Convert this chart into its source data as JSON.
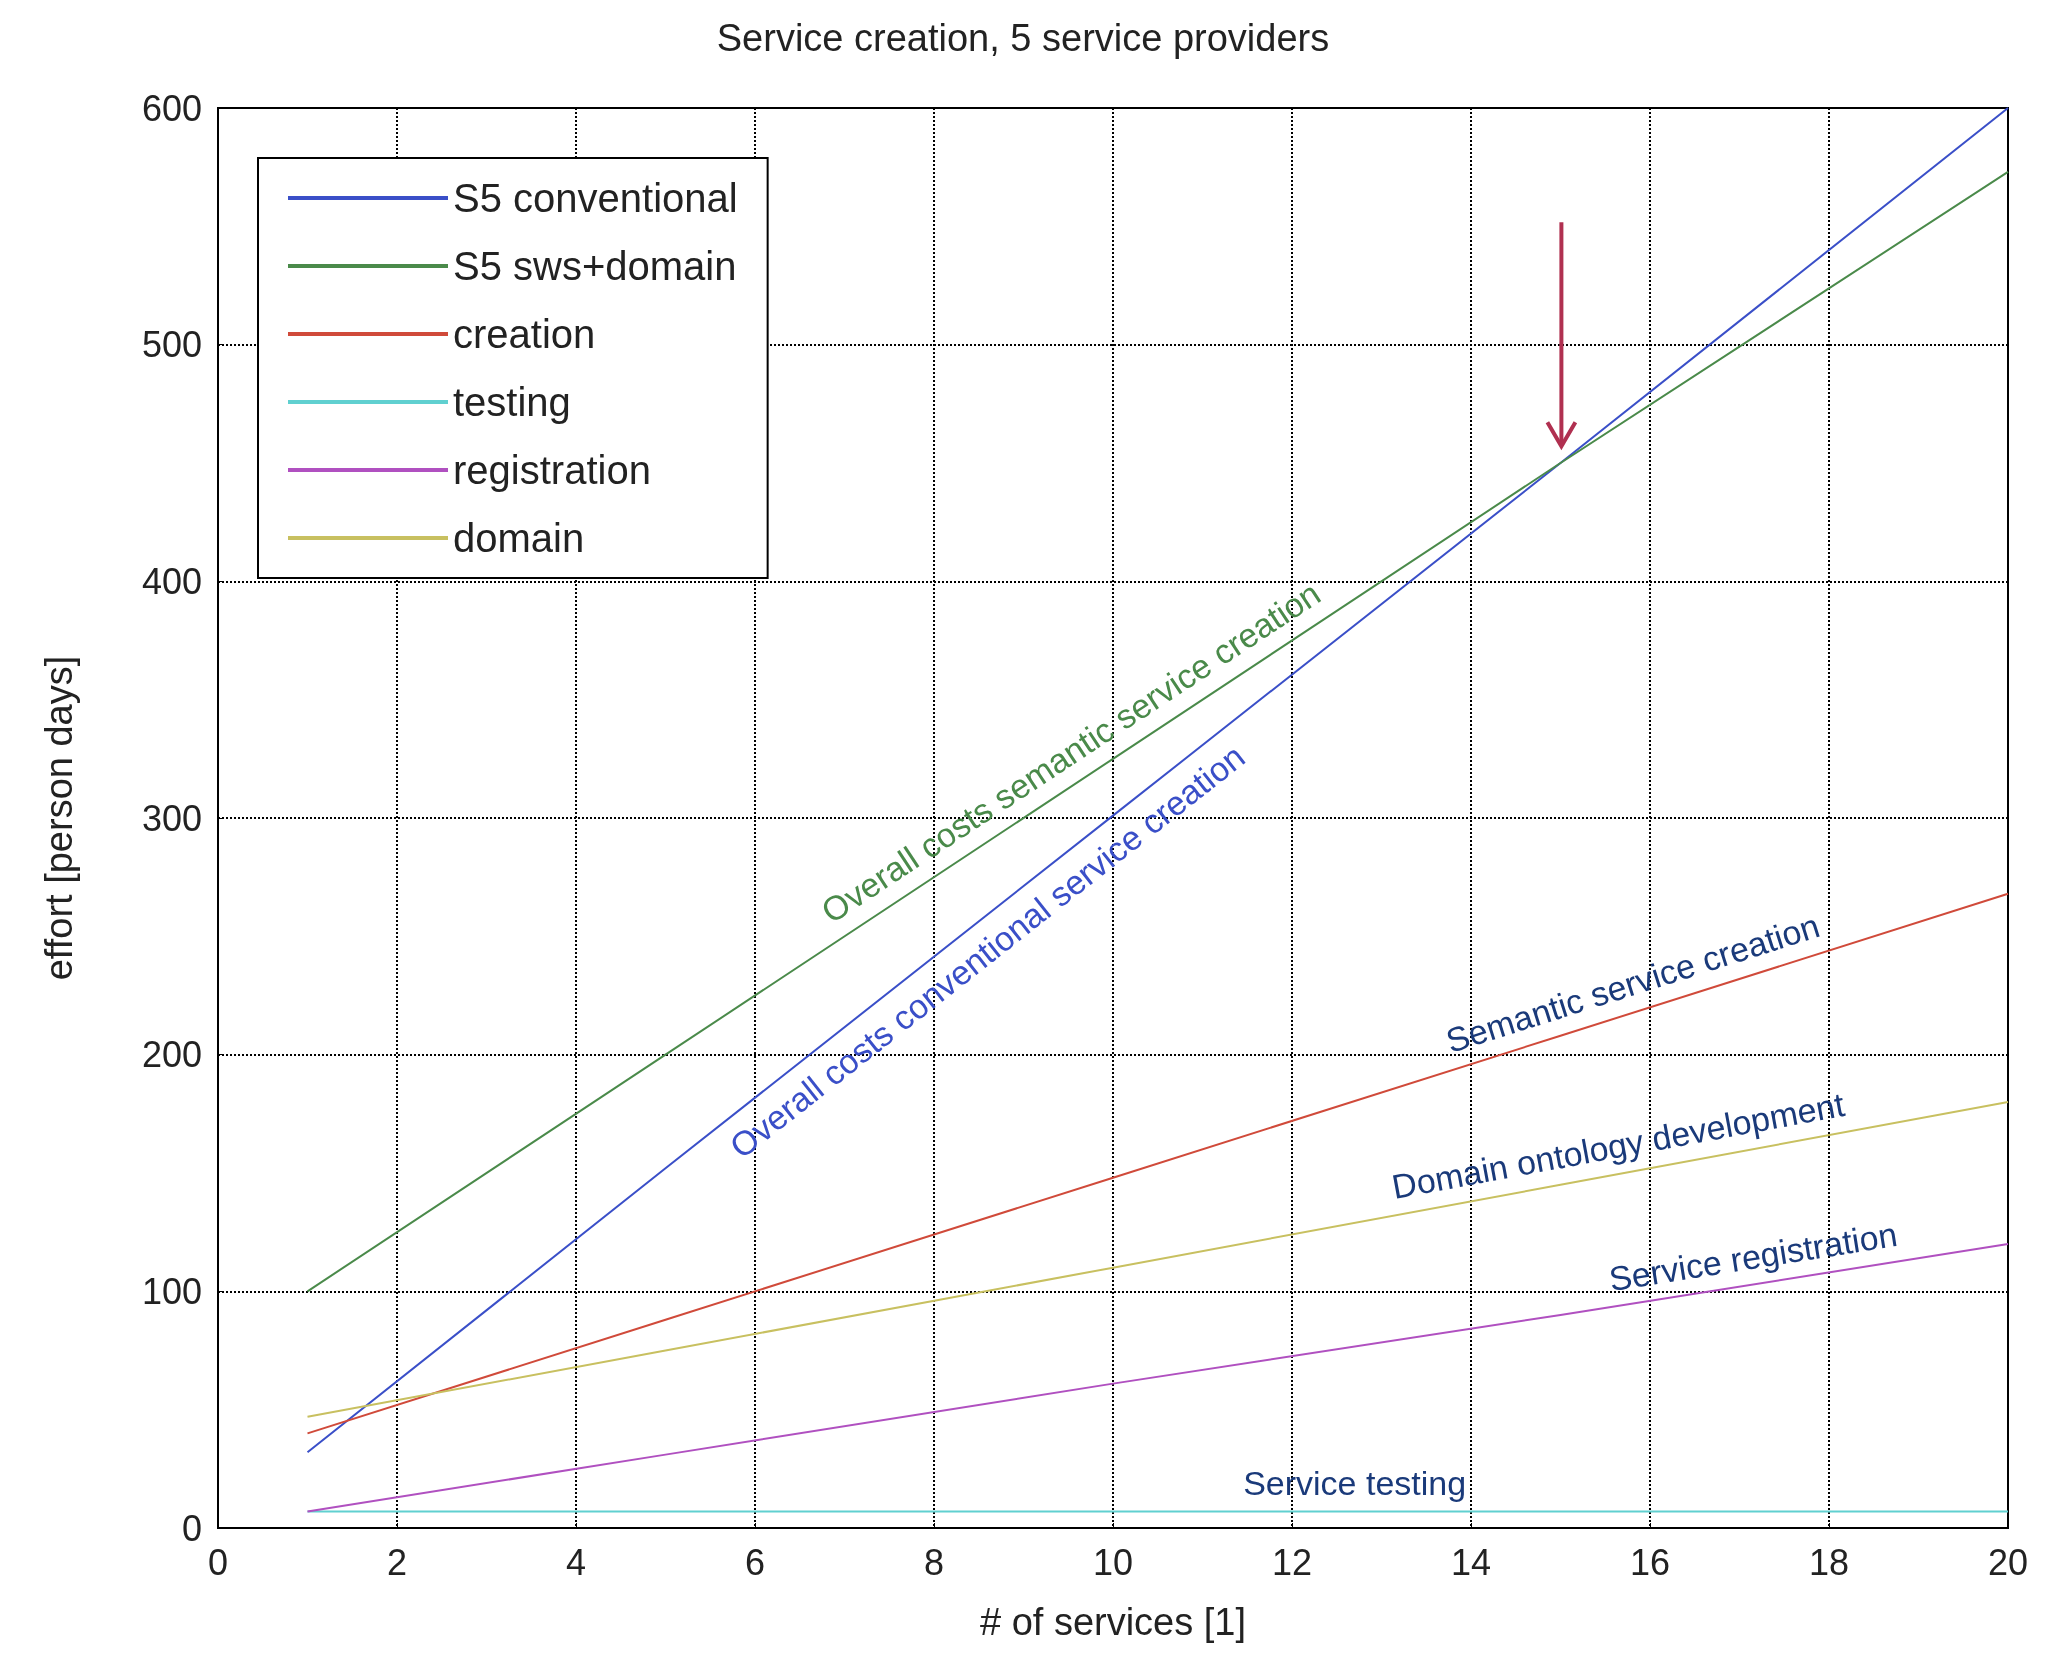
{
  "chart_data": {
    "type": "line",
    "title": "Service creation, 5 service providers",
    "xlabel": "# of services [1]",
    "ylabel": "effort [person days]",
    "xlim": [
      0,
      20
    ],
    "xticks": [
      0,
      2,
      4,
      6,
      8,
      10,
      12,
      14,
      16,
      18,
      20
    ],
    "ylim": [
      0,
      600
    ],
    "yticks": [
      0,
      100,
      200,
      300,
      400,
      500,
      600
    ],
    "grid": true,
    "legend": "top left",
    "line_style": "solid",
    "marker": "none",
    "series": [
      {
        "name": "S5 conventional",
        "color": "#3a4fc8",
        "x": [
          1,
          5,
          10,
          15,
          20
        ],
        "values": [
          32,
          152,
          301,
          450,
          600
        ]
      },
      {
        "name": "S5 sws+domain",
        "color": "#4a8a4a",
        "x": [
          1,
          5,
          10,
          15,
          20
        ],
        "values": [
          100,
          200,
          325,
          450,
          573
        ]
      },
      {
        "name": "creation",
        "color": "#d04a3a",
        "x": [
          1,
          5,
          10,
          15,
          20
        ],
        "values": [
          40,
          88,
          148,
          208,
          268
        ]
      },
      {
        "name": "testing",
        "color": "#60d0d0",
        "x": [
          1,
          5,
          10,
          15,
          20
        ],
        "values": [
          7,
          7,
          7,
          7,
          7
        ]
      },
      {
        "name": "registration",
        "color": "#b050c0",
        "x": [
          1,
          5,
          10,
          15,
          20
        ],
        "values": [
          7,
          31,
          61,
          90,
          120
        ]
      },
      {
        "name": "domain",
        "color": "#c8c060",
        "x": [
          1,
          5,
          10,
          15,
          20
        ],
        "values": [
          47,
          75,
          110,
          145,
          180
        ]
      }
    ],
    "annotations": [
      {
        "text": "Overall costs semantic service creation",
        "x": 9.7,
        "y": 318
      },
      {
        "text": "Overall costs conventional service creation",
        "x": 8.4,
        "y": 253
      },
      {
        "text": "Semantic service creation",
        "x": 15.9,
        "y": 219
      },
      {
        "text": "Domain ontology development",
        "x": 15.7,
        "y": 150
      },
      {
        "text": "Service registration",
        "x": 17.2,
        "y": 103
      },
      {
        "text": "Service testing",
        "x": 12.7,
        "y": 7
      }
    ]
  }
}
